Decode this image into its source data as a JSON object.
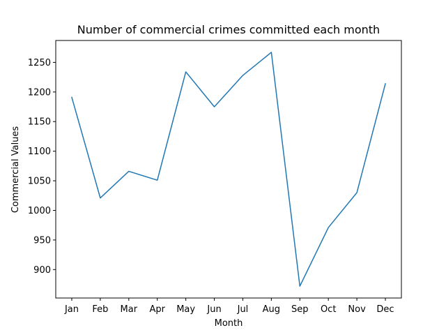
{
  "chart_data": {
    "type": "line",
    "title": "Number of commercial crimes committed each month",
    "xlabel": "Month",
    "ylabel": "Commercial Values",
    "categories": [
      "Jan",
      "Feb",
      "Mar",
      "Apr",
      "May",
      "Jun",
      "Jul",
      "Aug",
      "Sep",
      "Oct",
      "Nov",
      "Dec"
    ],
    "series": [
      {
        "values": [
          1191,
          1021,
          1066,
          1051,
          1234,
          1175,
          1228,
          1267,
          872,
          971,
          1030,
          1214
        ],
        "color": "#1f77b4"
      }
    ],
    "yticks": [
      900,
      950,
      1000,
      1050,
      1100,
      1150,
      1200,
      1250
    ],
    "ylim": [
      852,
      1287
    ],
    "grid": false,
    "legend": "none"
  }
}
